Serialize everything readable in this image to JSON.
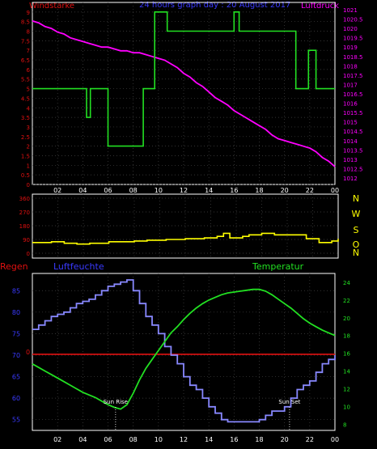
{
  "colors": {
    "red": "#e01010",
    "blue": "#3a3aff",
    "magenta": "#ff00ff",
    "green": "#22e022",
    "yellow": "#ffff00",
    "lightblue": "#8888ff",
    "white": "#ffffff",
    "grid": "#444444"
  },
  "header": {
    "left": "Windstärke",
    "center": "24 hours graph day : 20 August 2017",
    "right": "Luftdruck"
  },
  "xticks": [
    "02",
    "04",
    "06",
    "08",
    "10",
    "12",
    "14",
    "16",
    "18",
    "20",
    "22",
    "00"
  ],
  "chart_data": [
    {
      "type": "line",
      "name": "top",
      "left_axis": {
        "label": "Windstärke",
        "ticks": [
          "0",
          "0.5",
          "1",
          "1.5",
          "2",
          "2.5",
          "3",
          "3.5",
          "4",
          "4.5",
          "5",
          "5.5",
          "6",
          "6.5",
          "7",
          "7.5",
          "8",
          "8.5",
          "9"
        ],
        "range": [
          0,
          9.5
        ]
      },
      "right_axis": {
        "label": "Luftdruck",
        "ticks": [
          "1012",
          "1012.5",
          "1013",
          "1013.5",
          "1014",
          "1014.5",
          "1015",
          "1015.5",
          "1016",
          "1016.5",
          "1017",
          "1017.5",
          "1018",
          "1018.5",
          "1019",
          "1019.5",
          "1020",
          "1020.5",
          "1021"
        ],
        "range": [
          1012,
          1021
        ]
      },
      "series": [
        {
          "name": "Luftdruck",
          "color": "magenta",
          "axis": "right",
          "x": [
            0,
            0.5,
            1,
            1.5,
            2,
            2.5,
            3,
            3.5,
            4,
            4.5,
            5,
            5.5,
            6,
            6.5,
            7,
            7.5,
            8,
            8.5,
            9,
            9.5,
            10,
            10.5,
            11,
            11.5,
            12,
            12.5,
            13,
            13.5,
            14,
            14.5,
            15,
            15.5,
            16,
            16.5,
            17,
            17.5,
            18,
            18.5,
            19,
            19.5,
            20,
            20.5,
            21,
            21.5,
            22,
            22.5,
            23,
            23.5,
            24
          ],
          "y": [
            1020.4,
            1020.3,
            1020.1,
            1020.0,
            1019.8,
            1019.7,
            1019.5,
            1019.4,
            1019.3,
            1019.2,
            1019.1,
            1019.0,
            1019.0,
            1018.9,
            1018.8,
            1018.8,
            1018.7,
            1018.7,
            1018.6,
            1018.5,
            1018.4,
            1018.3,
            1018.1,
            1017.9,
            1017.6,
            1017.4,
            1017.1,
            1016.9,
            1016.6,
            1016.3,
            1016.1,
            1015.9,
            1015.6,
            1015.4,
            1015.2,
            1015.0,
            1014.8,
            1014.6,
            1014.3,
            1014.1,
            1014.0,
            1013.9,
            1013.8,
            1013.7,
            1013.6,
            1013.4,
            1013.1,
            1012.9,
            1012.6
          ]
        },
        {
          "name": "Windstärke",
          "color": "green",
          "axis": "left",
          "step": true,
          "x": [
            0,
            4.0,
            4.3,
            4.6,
            5.5,
            5.8,
            6.0,
            8.6,
            8.8,
            9.4,
            9.7,
            10.3,
            10.7,
            12.5,
            12.8,
            15.6,
            16.0,
            16.4,
            20.6,
            20.9,
            21.6,
            21.9,
            22.5,
            24
          ],
          "y": [
            5,
            5,
            3.5,
            5,
            5,
            5,
            2,
            2,
            5,
            5,
            9,
            9,
            8,
            8,
            8,
            8,
            9,
            8,
            8,
            5,
            5,
            7,
            5,
            5
          ]
        }
      ]
    },
    {
      "type": "line",
      "name": "middle",
      "left_axis": {
        "ticks": [
          "0",
          "90",
          "180",
          "270",
          "360"
        ],
        "range": [
          0,
          360
        ]
      },
      "right_axis": {
        "ticks": [
          "N",
          "W",
          "S",
          "O",
          "N"
        ]
      },
      "series": [
        {
          "name": "Windrichtung",
          "color": "yellow",
          "step": true,
          "x": [
            0,
            1.5,
            2.5,
            3.5,
            4.5,
            6,
            8,
            9,
            10.5,
            12,
            13.5,
            14.5,
            15,
            15.5,
            16.5,
            17,
            18,
            19,
            21.5,
            22.5,
            23.5,
            24
          ],
          "y": [
            70,
            75,
            65,
            60,
            65,
            75,
            80,
            85,
            90,
            95,
            100,
            110,
            130,
            100,
            110,
            120,
            130,
            120,
            95,
            70,
            80,
            95
          ]
        }
      ]
    },
    {
      "type": "line",
      "name": "bottom",
      "headers": {
        "left": "Regen",
        "center": "Luftfeuchte",
        "right": "Temperatur"
      },
      "left_axis": {
        "ticks": [
          "55",
          "60",
          "65",
          "70",
          "75",
          "80",
          "85"
        ],
        "range": [
          52.5,
          89
        ]
      },
      "right_axis": {
        "ticks": [
          "8",
          "10",
          "12",
          "14",
          "16",
          "18",
          "20",
          "22",
          "24"
        ],
        "range": [
          7.3,
          25
        ]
      },
      "annotations": [
        {
          "text": "Sun Rise",
          "x": 6.6
        },
        {
          "text": "Sun Set",
          "x": 20.4
        }
      ],
      "rain_value": "0",
      "series": [
        {
          "name": "Regen",
          "color": "red",
          "axis": "left",
          "x": [
            0,
            24
          ],
          "y": [
            70.2,
            70.2
          ]
        },
        {
          "name": "Luftfeuchte",
          "color": "lightblue",
          "axis": "left",
          "step": true,
          "x": [
            0,
            0.5,
            1,
            1.5,
            2,
            2.5,
            3,
            3.5,
            4,
            4.5,
            5,
            5.5,
            6,
            6.5,
            7,
            7.5,
            8,
            8.5,
            9,
            9.5,
            10,
            10.5,
            11,
            11.5,
            12,
            12.5,
            13,
            13.5,
            14,
            14.5,
            15,
            15.5,
            16,
            16.5,
            17,
            17.5,
            18,
            18.5,
            19,
            19.5,
            20,
            20.5,
            21,
            21.5,
            22,
            22.5,
            23,
            23.5,
            24
          ],
          "y": [
            76,
            77,
            78,
            79,
            79.5,
            80,
            81,
            82,
            82.5,
            83,
            84,
            85,
            86,
            86.5,
            87,
            87.5,
            85,
            82,
            79,
            77,
            75,
            72,
            70,
            68,
            65,
            63,
            62,
            60,
            58,
            56.5,
            55,
            54.5,
            54.5,
            54.5,
            54.5,
            54.5,
            55,
            56,
            57,
            57,
            58,
            60,
            62,
            63,
            64,
            66,
            68,
            69,
            70
          ]
        },
        {
          "name": "Temperatur",
          "color": "green",
          "axis": "right",
          "x": [
            0,
            0.5,
            1,
            1.5,
            2,
            2.5,
            3,
            3.5,
            4,
            4.5,
            5,
            5.5,
            6,
            6.5,
            7,
            7.5,
            8,
            8.5,
            9,
            9.5,
            10,
            10.5,
            11,
            11.5,
            12,
            12.5,
            13,
            13.5,
            14,
            14.5,
            15,
            15.5,
            16,
            16.5,
            17,
            17.5,
            18,
            18.5,
            19,
            19.5,
            20,
            20.5,
            21,
            21.5,
            22,
            22.5,
            23,
            23.5,
            24
          ],
          "y": [
            14.8,
            14.4,
            14.0,
            13.6,
            13.2,
            12.8,
            12.4,
            12.0,
            11.6,
            11.3,
            11.0,
            10.6,
            10.2,
            9.9,
            9.7,
            10.2,
            11.5,
            13.0,
            14.3,
            15.3,
            16.3,
            17.3,
            18.3,
            19.0,
            19.8,
            20.5,
            21.1,
            21.6,
            22.0,
            22.3,
            22.6,
            22.8,
            22.9,
            23.0,
            23.1,
            23.2,
            23.2,
            23.0,
            22.6,
            22.1,
            21.6,
            21.1,
            20.5,
            19.9,
            19.4,
            19.0,
            18.6,
            18.3,
            18.0
          ]
        }
      ]
    }
  ]
}
